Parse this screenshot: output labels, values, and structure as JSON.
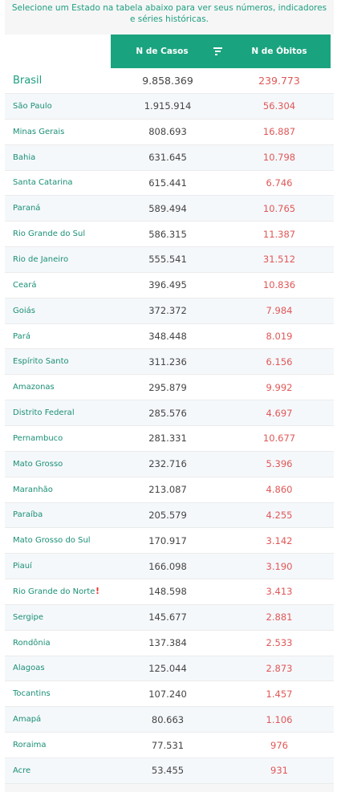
{
  "intro": {
    "text": "Selecione um Estado na tabela abaixo para ver seus números, indicadores e séries históricas."
  },
  "table": {
    "headers": {
      "cases": "N de Casos",
      "deaths": "N de Óbitos"
    },
    "total": {
      "name": "Brasil",
      "cases": "9.858.369",
      "deaths": "239.773"
    },
    "rows": [
      {
        "name": "São Paulo",
        "cases": "1.915.914",
        "deaths": "56.304"
      },
      {
        "name": "Minas Gerais",
        "cases": "808.693",
        "deaths": "16.887"
      },
      {
        "name": "Bahia",
        "cases": "631.645",
        "deaths": "10.798"
      },
      {
        "name": "Santa Catarina",
        "cases": "615.441",
        "deaths": "6.746"
      },
      {
        "name": "Paraná",
        "cases": "589.494",
        "deaths": "10.765"
      },
      {
        "name": "Rio Grande do Sul",
        "cases": "586.315",
        "deaths": "11.387"
      },
      {
        "name": "Rio de Janeiro",
        "cases": "555.541",
        "deaths": "31.512"
      },
      {
        "name": "Ceará",
        "cases": "396.495",
        "deaths": "10.836"
      },
      {
        "name": "Goiás",
        "cases": "372.372",
        "deaths": "7.984"
      },
      {
        "name": "Pará",
        "cases": "348.448",
        "deaths": "8.019"
      },
      {
        "name": "Espírito Santo",
        "cases": "311.236",
        "deaths": "6.156"
      },
      {
        "name": "Amazonas",
        "cases": "295.879",
        "deaths": "9.992"
      },
      {
        "name": "Distrito Federal",
        "cases": "285.576",
        "deaths": "4.697"
      },
      {
        "name": "Pernambuco",
        "cases": "281.331",
        "deaths": "10.677"
      },
      {
        "name": "Mato Grosso",
        "cases": "232.716",
        "deaths": "5.396"
      },
      {
        "name": "Maranhão",
        "cases": "213.087",
        "deaths": "4.860"
      },
      {
        "name": "Paraíba",
        "cases": "205.579",
        "deaths": "4.255"
      },
      {
        "name": "Mato Grosso do Sul",
        "cases": "170.917",
        "deaths": "3.142"
      },
      {
        "name": "Piauí",
        "cases": "166.098",
        "deaths": "3.190"
      },
      {
        "name": "Rio Grande do Norte",
        "cases": "148.598",
        "deaths": "3.413",
        "warning": "!"
      },
      {
        "name": "Sergipe",
        "cases": "145.677",
        "deaths": "2.881"
      },
      {
        "name": "Rondônia",
        "cases": "137.384",
        "deaths": "2.533"
      },
      {
        "name": "Alagoas",
        "cases": "125.044",
        "deaths": "2.873"
      },
      {
        "name": "Tocantins",
        "cases": "107.240",
        "deaths": "1.457"
      },
      {
        "name": "Amapá",
        "cases": "80.663",
        "deaths": "1.106"
      },
      {
        "name": "Roraima",
        "cases": "77.531",
        "deaths": "976"
      },
      {
        "name": "Acre",
        "cases": "53.455",
        "deaths": "931"
      }
    ]
  },
  "colors": {
    "accent": "#1aa37f",
    "deaths": "#e05757",
    "warning": "#e33333"
  },
  "icons": {
    "filter": "filter-icon",
    "warning": "exclamation-icon"
  }
}
